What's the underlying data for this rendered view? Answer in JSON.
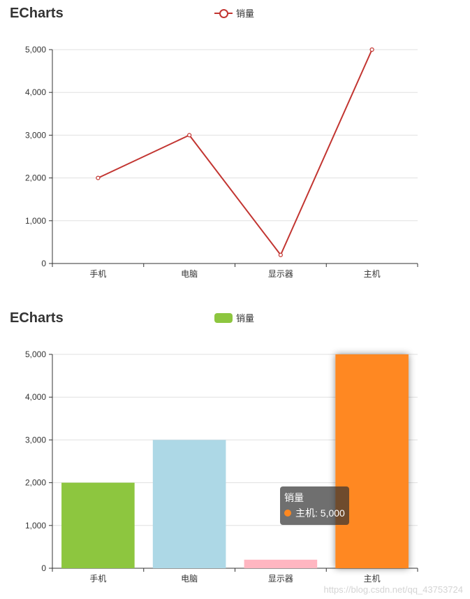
{
  "chart_data": [
    {
      "type": "line",
      "title": "ECharts",
      "legend": {
        "labels": [
          "销量"
        ],
        "placement": "top-center"
      },
      "categories": [
        "手机",
        "电脑",
        "显示器",
        "主机"
      ],
      "series": [
        {
          "name": "销量",
          "values": [
            2000,
            3000,
            200,
            5000
          ],
          "color": "#c23531"
        }
      ],
      "ylim": [
        0,
        5000
      ],
      "yticks": [
        "0",
        "1,000",
        "2,000",
        "3,000",
        "4,000",
        "5,000"
      ],
      "grid": true
    },
    {
      "type": "bar",
      "title": "ECharts",
      "legend": {
        "labels": [
          "销量"
        ],
        "placement": "top-center",
        "color": "#8dc63f"
      },
      "categories": [
        "手机",
        "电脑",
        "显示器",
        "主机"
      ],
      "series": [
        {
          "name": "销量",
          "values": [
            2000,
            3000,
            200,
            5000
          ],
          "colors": [
            "#8dc63f",
            "#add8e6",
            "#ffb6c1",
            "#ff8820"
          ]
        }
      ],
      "ylim": [
        0,
        5000
      ],
      "yticks": [
        "0",
        "1,000",
        "2,000",
        "3,000",
        "4,000",
        "5,000"
      ],
      "grid": true,
      "highlighted_index": 3,
      "tooltip": {
        "title": "销量",
        "category": "主机",
        "value_text": "5,000",
        "color": "#ff8820"
      }
    }
  ],
  "watermark": "https://blog.csdn.net/qq_43753724"
}
